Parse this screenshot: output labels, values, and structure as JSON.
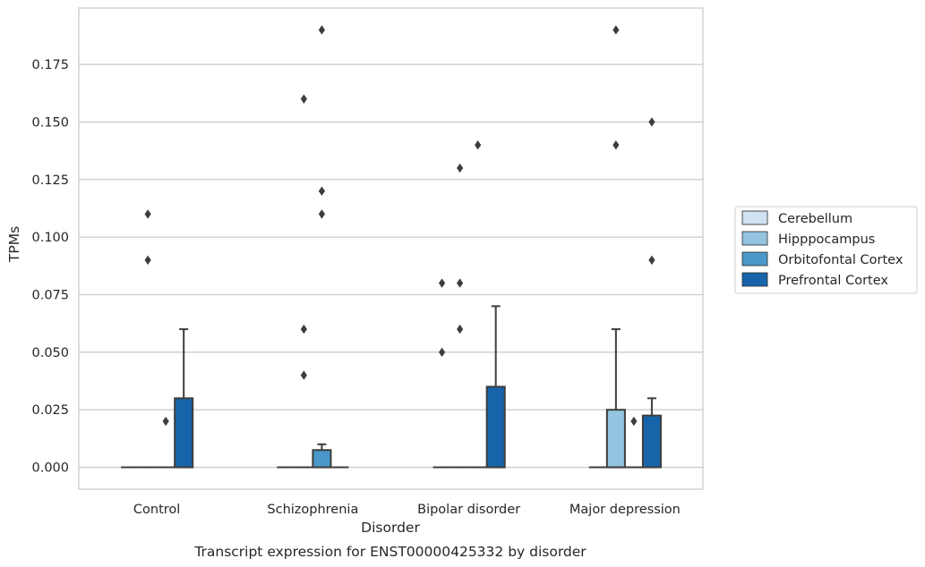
{
  "chart_data": {
    "type": "box",
    "title": "",
    "caption": "Transcript expression for ENST00000425332 by disorder",
    "xlabel": "Disorder",
    "ylabel": "TPMs",
    "ylim": [
      -0.0095,
      0.1995
    ],
    "yticks": [
      "0.000",
      "0.025",
      "0.050",
      "0.075",
      "0.100",
      "0.125",
      "0.150",
      "0.175"
    ],
    "ytick_values": [
      0,
      0.025,
      0.05,
      0.075,
      0.1,
      0.125,
      0.15,
      0.175
    ],
    "grid": "horizontal",
    "legend_position": "right",
    "categories": [
      "Control",
      "Schizophrenia",
      "Bipolar disorder",
      "Major depression"
    ],
    "series": [
      {
        "name": "Cerebellum",
        "color": "#d0e1f2",
        "boxes": [
          {
            "q1": 0,
            "median": 0,
            "q3": 0,
            "whisker_low": 0,
            "whisker_high": 0,
            "outliers": []
          },
          {
            "q1": 0,
            "median": 0,
            "q3": 0,
            "whisker_low": 0,
            "whisker_high": 0,
            "outliers": []
          },
          {
            "q1": 0,
            "median": 0,
            "q3": 0,
            "whisker_low": 0,
            "whisker_high": 0,
            "outliers": [
              0.05,
              0.08
            ]
          },
          {
            "q1": 0,
            "median": 0,
            "q3": 0,
            "whisker_low": 0,
            "whisker_high": 0,
            "outliers": []
          }
        ]
      },
      {
        "name": "Hipppocampus",
        "color": "#94c4df",
        "boxes": [
          {
            "q1": 0,
            "median": 0,
            "q3": 0,
            "whisker_low": 0,
            "whisker_high": 0,
            "outliers": [
              0.09,
              0.11
            ]
          },
          {
            "q1": 0,
            "median": 0,
            "q3": 0,
            "whisker_low": 0,
            "whisker_high": 0,
            "outliers": [
              0.04,
              0.06,
              0.16
            ]
          },
          {
            "q1": 0,
            "median": 0,
            "q3": 0,
            "whisker_low": 0,
            "whisker_high": 0,
            "outliers": [
              0.06,
              0.08,
              0.13
            ]
          },
          {
            "q1": 0,
            "median": 0,
            "q3": 0.025,
            "whisker_low": 0,
            "whisker_high": 0.06,
            "outliers": [
              0.14,
              0.19
            ]
          }
        ]
      },
      {
        "name": "Orbitofontal Cortex",
        "color": "#4a98c9",
        "boxes": [
          {
            "q1": 0,
            "median": 0,
            "q3": 0,
            "whisker_low": 0,
            "whisker_high": 0,
            "outliers": [
              0.02
            ]
          },
          {
            "q1": 0,
            "median": 0,
            "q3": 0.0075,
            "whisker_low": 0,
            "whisker_high": 0.01,
            "outliers": [
              0.11,
              0.12,
              0.19
            ]
          },
          {
            "q1": 0,
            "median": 0,
            "q3": 0,
            "whisker_low": 0,
            "whisker_high": 0,
            "outliers": [
              0.14
            ]
          },
          {
            "q1": 0,
            "median": 0,
            "q3": 0,
            "whisker_low": 0,
            "whisker_high": 0,
            "outliers": [
              0.02
            ]
          }
        ]
      },
      {
        "name": "Prefrontal Cortex",
        "color": "#1764ab",
        "boxes": [
          {
            "q1": 0,
            "median": 0,
            "q3": 0.03,
            "whisker_low": 0,
            "whisker_high": 0.06,
            "outliers": []
          },
          {
            "q1": 0,
            "median": 0,
            "q3": 0,
            "whisker_low": 0,
            "whisker_high": 0,
            "outliers": []
          },
          {
            "q1": 0,
            "median": 0,
            "q3": 0.035,
            "whisker_low": 0,
            "whisker_high": 0.07,
            "outliers": []
          },
          {
            "q1": 0,
            "median": 0,
            "q3": 0.0225,
            "whisker_low": 0,
            "whisker_high": 0.03,
            "outliers": [
              0.09,
              0.15
            ]
          }
        ]
      }
    ]
  }
}
